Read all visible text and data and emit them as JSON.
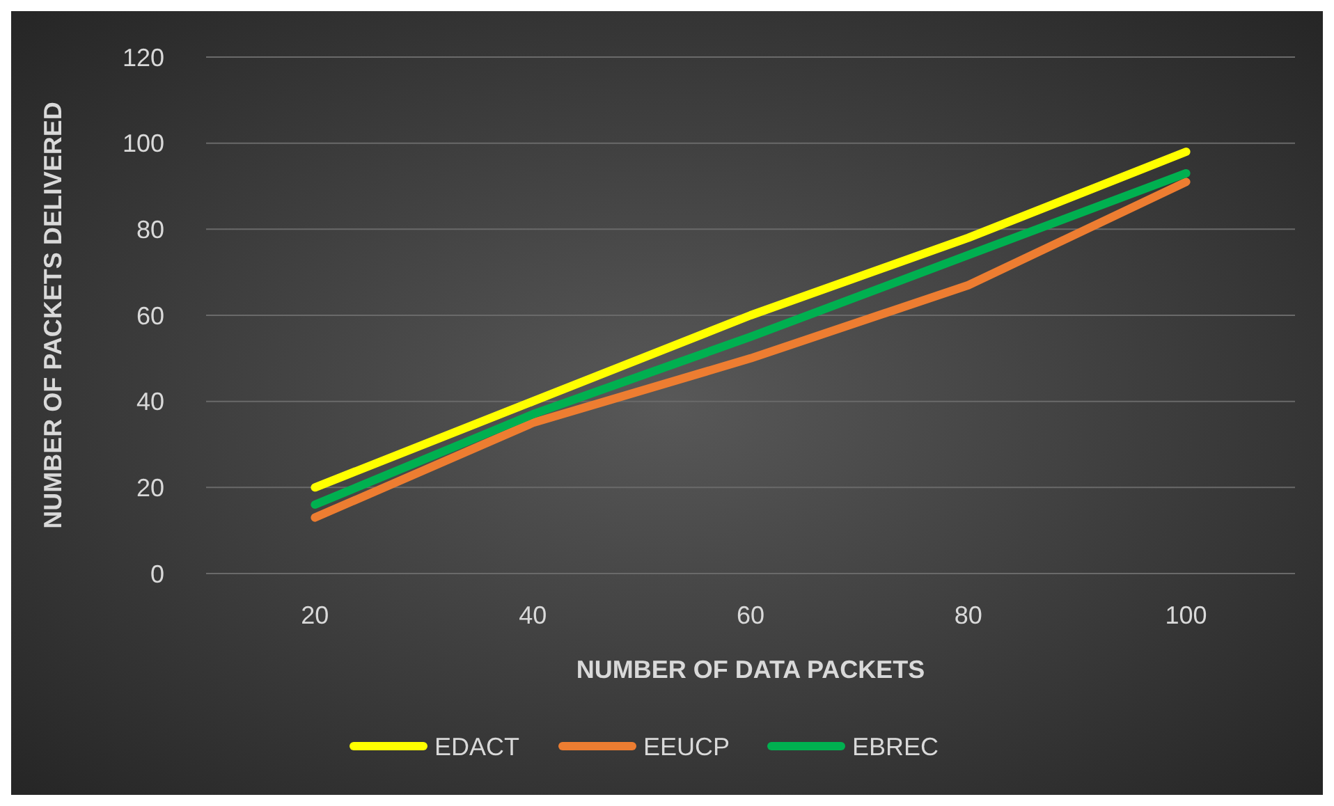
{
  "chart_data": {
    "type": "line",
    "xlabel": "NUMBER OF DATA PACKETS",
    "ylabel": "NUMBER OF PACKETS DELIVERED",
    "categories": [
      "20",
      "40",
      "60",
      "80",
      "100"
    ],
    "series": [
      {
        "name": "EDACT",
        "color": "#ffff00",
        "values": [
          20,
          40,
          60,
          78,
          98
        ]
      },
      {
        "name": "EEUCP",
        "color": "#ed7d31",
        "values": [
          13,
          35,
          50,
          67,
          91
        ]
      },
      {
        "name": "EBREC",
        "color": "#00b050",
        "values": [
          16,
          37,
          55,
          74,
          93
        ]
      }
    ],
    "ylim": [
      0,
      120
    ],
    "yticks": [
      0,
      20,
      40,
      60,
      80,
      100,
      120
    ],
    "grid": "y",
    "legend": "bottom",
    "marker": "none",
    "line_style": "solid"
  }
}
